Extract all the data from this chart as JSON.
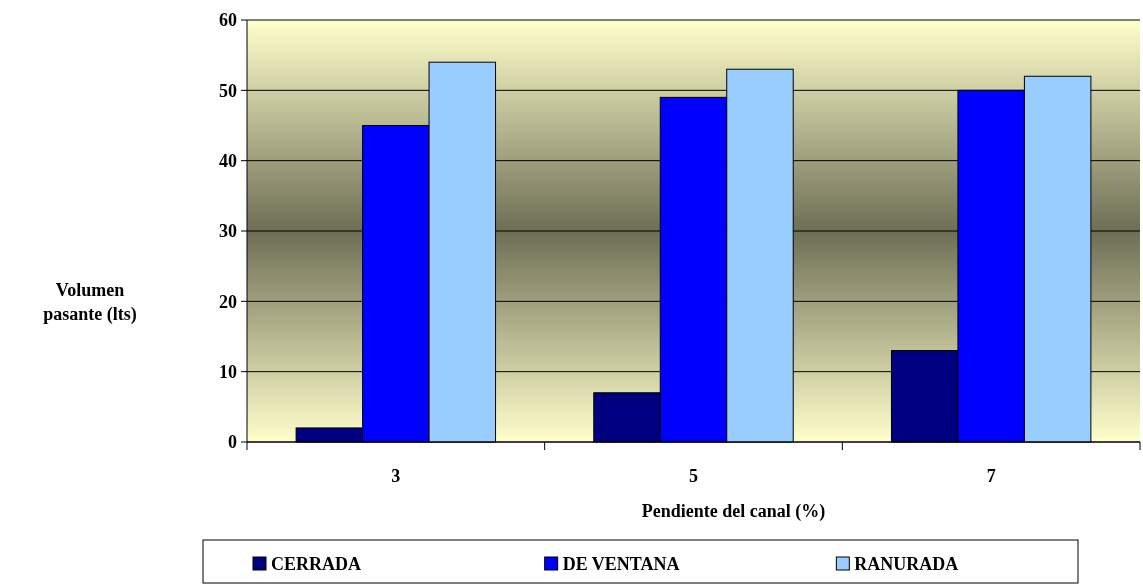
{
  "chart_data": {
    "type": "bar",
    "xlabel": "Pendiente del canal (%)",
    "ylabel": "Volumen pasante (lts)",
    "categories": [
      "3",
      "5",
      "7"
    ],
    "series": [
      {
        "name": "CERRADA",
        "color": "#000080",
        "values": [
          2,
          7,
          13
        ]
      },
      {
        "name": "DE VENTANA",
        "color": "#0000ff",
        "values": [
          45,
          49,
          50
        ]
      },
      {
        "name": "RANURADA",
        "color": "#99ccff",
        "values": [
          54,
          53,
          52
        ]
      }
    ],
    "ylim": [
      0,
      60
    ],
    "yticks": [
      0,
      10,
      20,
      30,
      40,
      50,
      60
    ],
    "grid": "y",
    "legend": "bottom"
  }
}
